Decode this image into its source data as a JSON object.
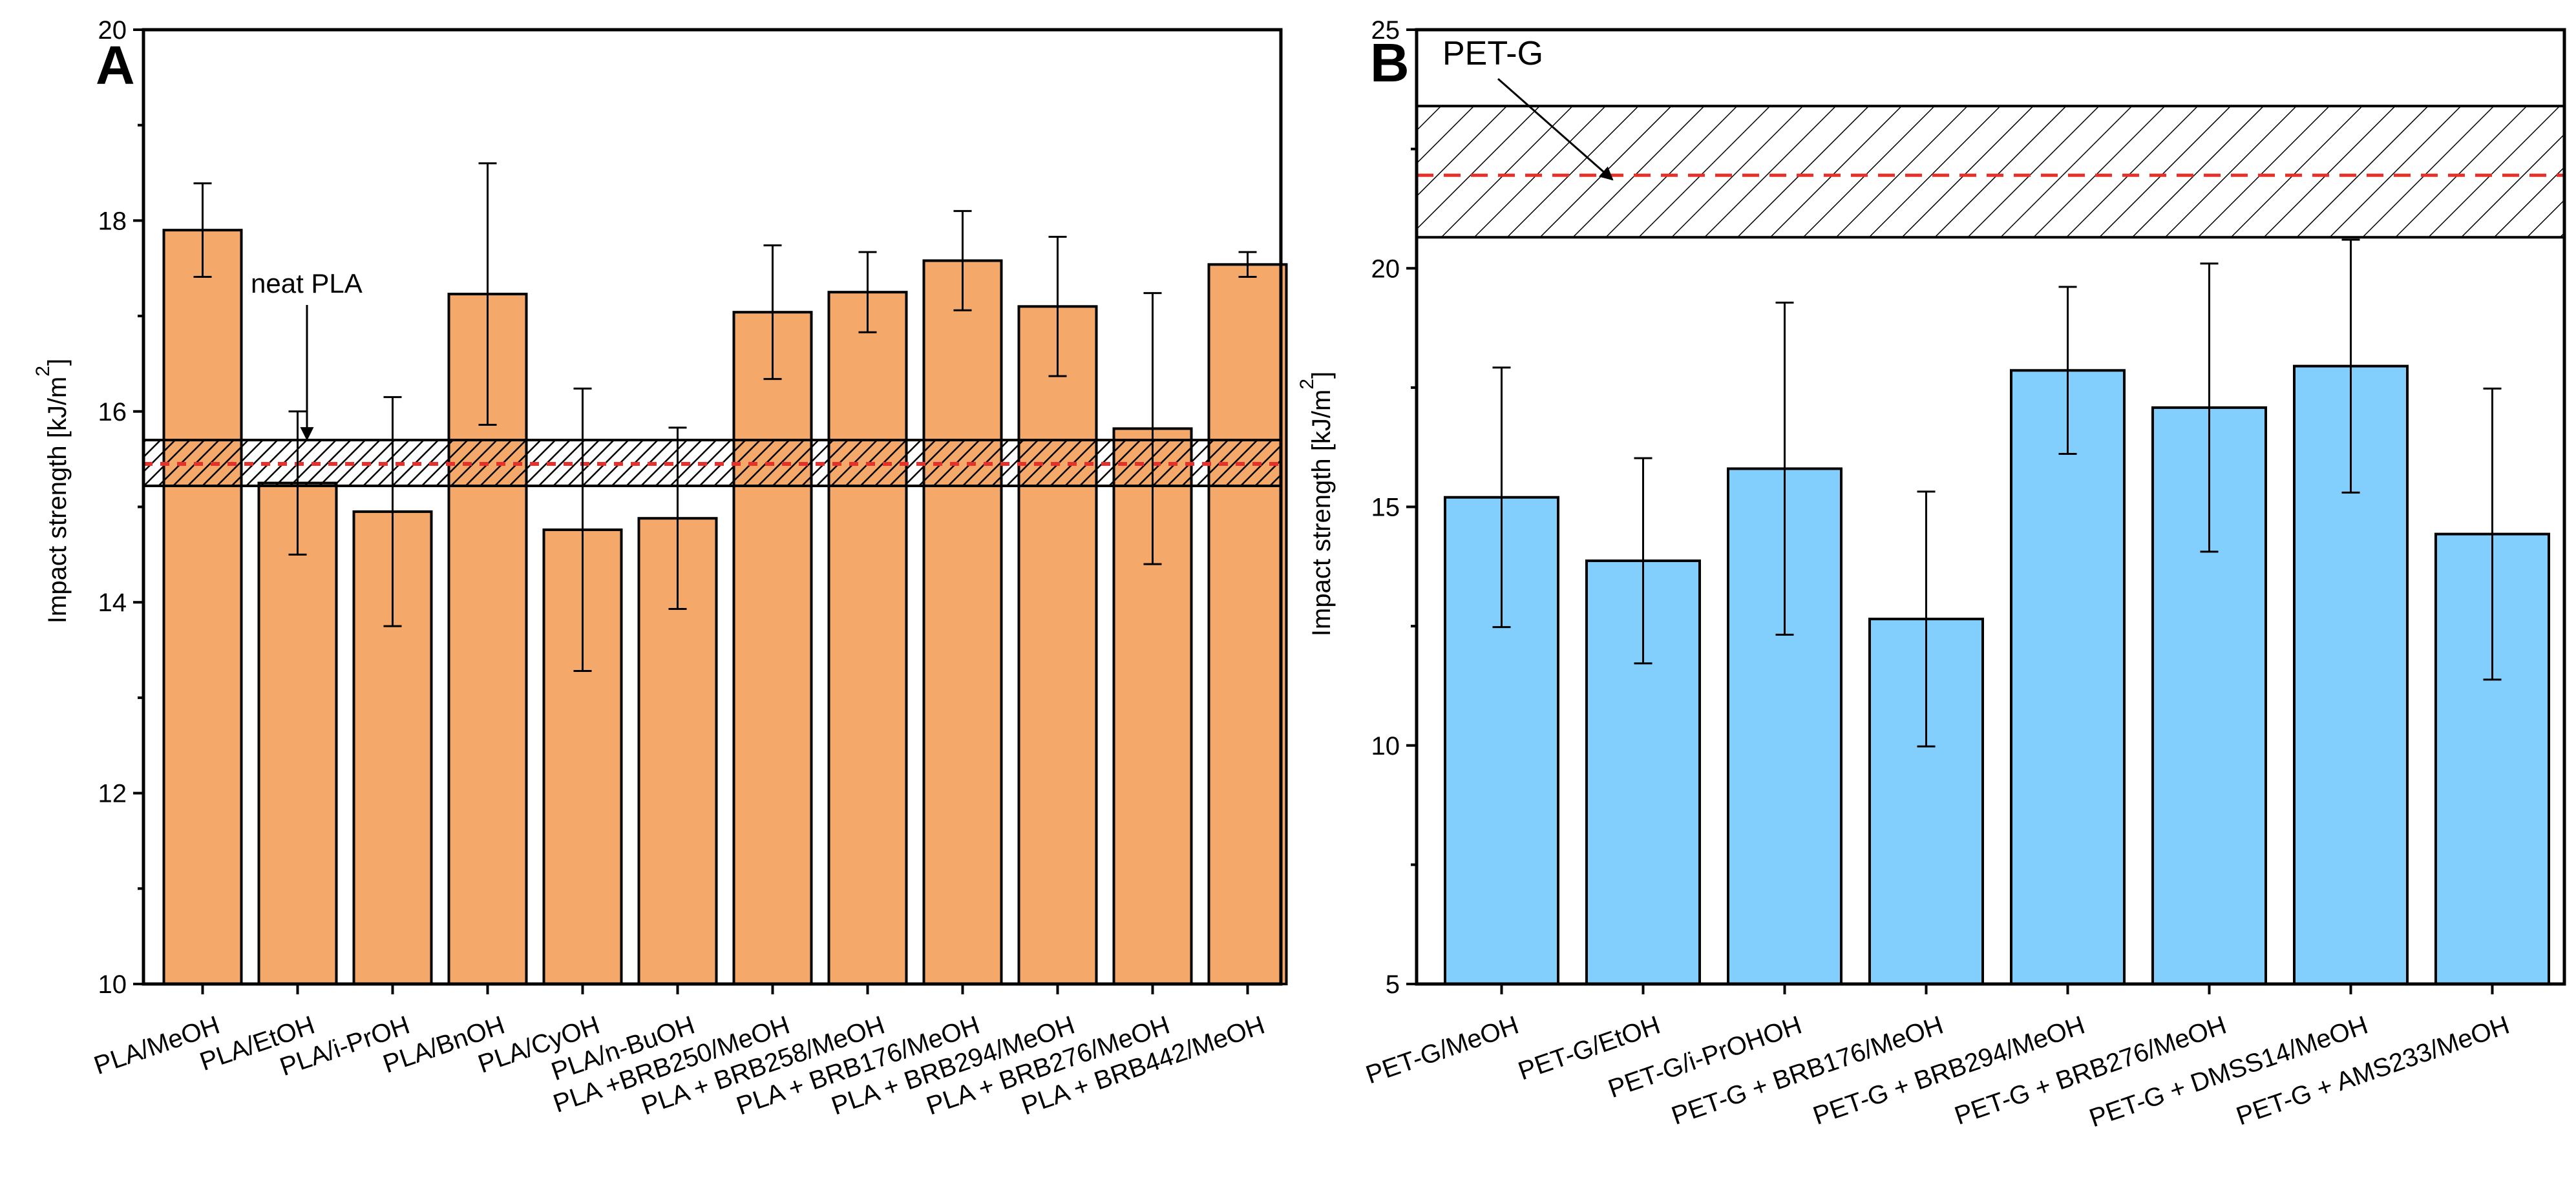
{
  "chart_data": [
    {
      "type": "bar",
      "panel": "A",
      "bar_color": "#f4a96a",
      "ylabel": "Impact strength [kJ/m",
      "ylabel_superscript": "2",
      "ylabel_close": "]",
      "ylim": [
        10,
        20
      ],
      "yticks": [
        10,
        12,
        14,
        16,
        18,
        20
      ],
      "categories": [
        "PLA/MeOH",
        "PLA/EtOH",
        "PLA/i-PrOH",
        "PLA/BnOH",
        "PLA/CyOH",
        "PLA/n-BuOH",
        "PLA +BRB250/MeOH",
        "PLA + BRB258/MeOH",
        "PLA + BRB176/MeOH",
        "PLA + BRB294/MeOH",
        "PLA + BRB276/MeOH",
        "PLA + BRB442/MeOH"
      ],
      "values": [
        17.9,
        15.25,
        14.95,
        17.23,
        14.76,
        14.88,
        17.04,
        17.25,
        17.58,
        17.1,
        15.82,
        17.54
      ],
      "errors": [
        0.49,
        0.75,
        1.2,
        1.37,
        1.48,
        0.95,
        0.7,
        0.42,
        0.52,
        0.73,
        1.42,
        0.13
      ],
      "reference": {
        "label": "neat PLA",
        "value": 15.45,
        "band": [
          15.22,
          15.7
        ],
        "line_color": "#e8302a"
      }
    },
    {
      "type": "bar",
      "panel": "B",
      "bar_color": "#82cffd",
      "ylabel": "Impact strength [kJ/m",
      "ylabel_superscript": "2",
      "ylabel_close": "]",
      "ylim": [
        5,
        25
      ],
      "yticks": [
        5,
        10,
        15,
        20,
        25
      ],
      "categories": [
        "PET-G/MeOH",
        "PET-G/EtOH",
        "PET-G/i-PrOHOH",
        "PET-G + BRB176/MeOH",
        "PET-G + BRB294/MeOH",
        "PET-G + BRB276/MeOH",
        "PET-G + DMSS14/MeOH",
        "PET-G + AMS233/MeOH"
      ],
      "values": [
        15.2,
        13.87,
        15.8,
        12.65,
        17.86,
        17.08,
        17.95,
        14.43
      ],
      "errors": [
        2.72,
        2.15,
        3.48,
        2.67,
        1.75,
        3.02,
        2.65,
        3.05
      ],
      "reference": {
        "label": "PET-G",
        "value": 21.95,
        "band": [
          20.65,
          23.4
        ],
        "line_color": "#e8302a"
      }
    }
  ]
}
